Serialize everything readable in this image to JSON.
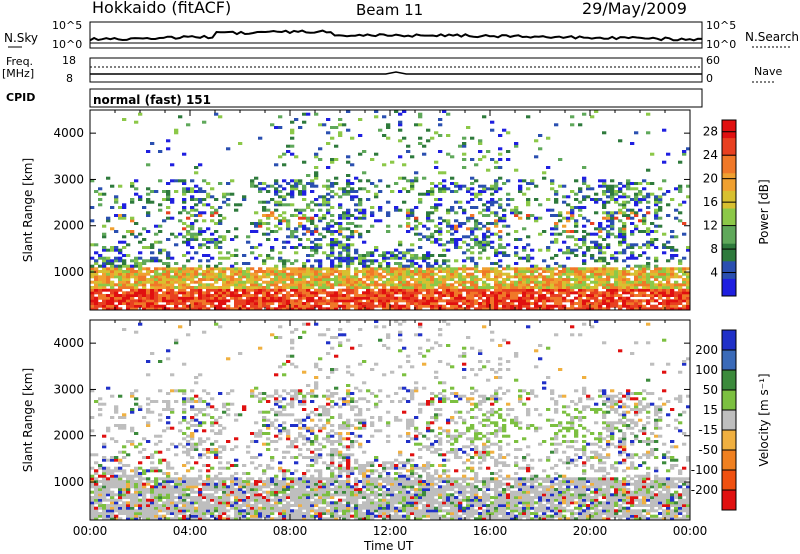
{
  "header": {
    "station": "Hokkaido (fitACF)",
    "beam": "Beam 11",
    "date": "29/May/2009"
  },
  "strip": {
    "nsky_label": "N.Sky",
    "nsky_ticks": [
      "10^5",
      "10^0"
    ],
    "nsearch_label": "N.Search",
    "nsearch_ticks": [
      "10^5",
      "10^0"
    ],
    "freq_label": "Freq.",
    "freq_unit": "[MHz]",
    "freq_ticks": [
      "18",
      "8"
    ],
    "nave_label": "Nave",
    "nave_ticks": [
      "60",
      "0"
    ],
    "cpid_label": "CPID",
    "cpid_value": "normal (fast) 151"
  },
  "chart_data": [
    {
      "type": "heatmap",
      "parameter": "power",
      "xlabel": "",
      "ylabel": "Slant Range [km]",
      "ylim": [
        180,
        4500
      ],
      "yticks": [
        "1000",
        "2000",
        "3000",
        "4000"
      ],
      "xlim": [
        "00:00",
        "24:00"
      ],
      "colorbar": {
        "label": "Power [dB]",
        "ticks": [
          "4",
          "8",
          "12",
          "16",
          "20",
          "24",
          "28"
        ],
        "range": [
          0,
          30
        ],
        "colors": [
          "#1f1fe0",
          "#2a4fb0",
          "#2e7a3c",
          "#5fa85a",
          "#8cc848",
          "#d8c030",
          "#f0a030",
          "#f07828",
          "#e84020",
          "#e01010"
        ]
      }
    },
    {
      "type": "heatmap",
      "parameter": "velocity",
      "xlabel": "Time UT",
      "ylabel": "Slant Range [km]",
      "ylim": [
        180,
        4500
      ],
      "yticks": [
        "1000",
        "2000",
        "3000",
        "4000"
      ],
      "xticks": [
        "00:00",
        "04:00",
        "08:00",
        "12:00",
        "16:00",
        "20:00",
        "00:00"
      ],
      "colorbar": {
        "label": "Velocity [m s⁻¹]",
        "ticks": [
          "200",
          "100",
          "50",
          "15",
          "-15",
          "-50",
          "-100",
          "-200"
        ],
        "colors": [
          "#2030c8",
          "#3a6ab8",
          "#3c8a3c",
          "#7cc040",
          "#bebebe",
          "#f0b040",
          "#f08020",
          "#f05010",
          "#e01010"
        ]
      }
    }
  ]
}
